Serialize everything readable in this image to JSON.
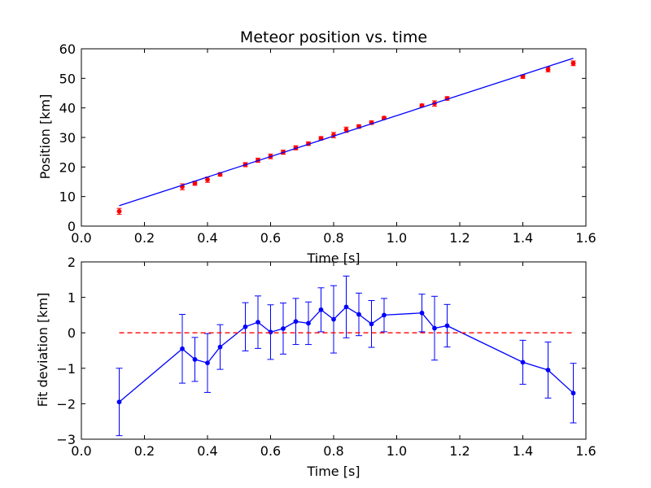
{
  "chart_data": [
    {
      "type": "scatter",
      "title": "Meteor position vs. time",
      "xlabel": "Time [s]",
      "ylabel": "Position [km]",
      "xlim": [
        0.0,
        1.6
      ],
      "ylim": [
        0,
        60
      ],
      "xticks": [
        "0.0",
        "0.2",
        "0.4",
        "0.6",
        "0.8",
        "1.0",
        "1.2",
        "1.4",
        "1.6"
      ],
      "yticks": [
        "0",
        "10",
        "20",
        "30",
        "40",
        "50",
        "60"
      ],
      "grid": false,
      "colors": {
        "points": "#ff0000",
        "fit": "#0000ff"
      },
      "series": [
        {
          "kind": "points_with_errorbars",
          "x": [
            0.12,
            0.32,
            0.36,
            0.4,
            0.44,
            0.52,
            0.56,
            0.6,
            0.64,
            0.68,
            0.72,
            0.76,
            0.8,
            0.84,
            0.88,
            0.92,
            0.96,
            1.08,
            1.12,
            1.16,
            1.4,
            1.48,
            1.56
          ],
          "y": [
            5.0,
            13.3,
            14.5,
            15.7,
            17.5,
            20.8,
            22.3,
            23.6,
            25.0,
            26.5,
            27.9,
            29.7,
            30.8,
            32.6,
            33.7,
            35.0,
            36.6,
            40.8,
            41.5,
            43.2,
            50.6,
            53.0,
            55.1
          ],
          "yerr": [
            1.0,
            1.0,
            0.7,
            0.9,
            0.6,
            0.7,
            0.7,
            0.8,
            0.7,
            0.7,
            0.6,
            0.6,
            0.9,
            0.9,
            0.6,
            0.6,
            0.4,
            0.5,
            0.9,
            0.6,
            0.6,
            0.8,
            0.8
          ]
        },
        {
          "kind": "fit_line",
          "x": [
            0.12,
            1.56
          ],
          "y": [
            6.9,
            56.8
          ]
        }
      ]
    },
    {
      "type": "line",
      "xlabel": "Time [s]",
      "ylabel": "Fit deviation [km]",
      "xlim": [
        0.0,
        1.6
      ],
      "ylim": [
        -3,
        2
      ],
      "xticks": [
        "0.0",
        "0.2",
        "0.4",
        "0.6",
        "0.8",
        "1.0",
        "1.2",
        "1.4",
        "1.6"
      ],
      "yticks": [
        "−3",
        "−2",
        "−1",
        "0",
        "1",
        "2"
      ],
      "grid": false,
      "colors": {
        "series": "#0000ff",
        "zero_line": "#ff0000"
      },
      "series": [
        {
          "kind": "line_with_errorbars",
          "x": [
            0.12,
            0.32,
            0.36,
            0.4,
            0.44,
            0.52,
            0.56,
            0.6,
            0.64,
            0.68,
            0.72,
            0.76,
            0.8,
            0.84,
            0.88,
            0.92,
            0.96,
            1.08,
            1.12,
            1.16,
            1.4,
            1.48,
            1.56
          ],
          "y": [
            -1.95,
            -0.45,
            -0.75,
            -0.85,
            -0.4,
            0.17,
            0.3,
            0.02,
            0.12,
            0.32,
            0.27,
            0.65,
            0.38,
            0.73,
            0.52,
            0.25,
            0.5,
            0.56,
            0.13,
            0.2,
            -0.83,
            -1.05,
            -1.7
          ],
          "yerr": [
            0.95,
            0.97,
            0.62,
            0.83,
            0.63,
            0.68,
            0.74,
            0.77,
            0.72,
            0.65,
            0.6,
            0.62,
            0.95,
            0.87,
            0.6,
            0.66,
            0.47,
            0.53,
            0.9,
            0.6,
            0.62,
            0.79,
            0.84
          ]
        },
        {
          "kind": "reference_line",
          "x": [
            0.12,
            1.56
          ],
          "y": [
            0,
            0
          ]
        }
      ]
    }
  ]
}
